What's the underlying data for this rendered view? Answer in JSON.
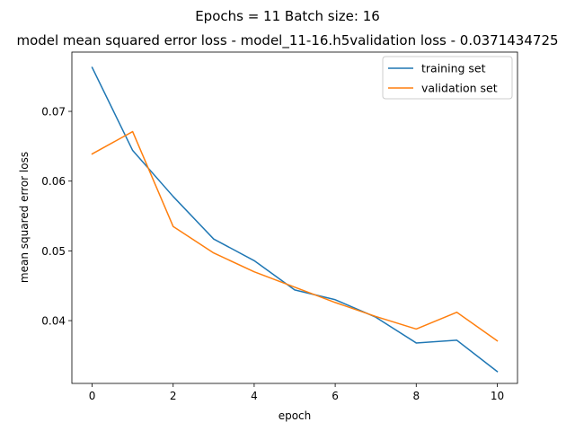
{
  "chart_data": {
    "type": "line",
    "suptitle": "Epochs = 11  Batch size: 16",
    "title": "model mean squared error loss - model_11-16.h5validation loss - 0.0371434725",
    "xlabel": "epoch",
    "ylabel": "mean squared error loss",
    "xlim": [
      -0.5,
      10.5
    ],
    "ylim": [
      0.031,
      0.0785
    ],
    "xticks": [
      0,
      2,
      4,
      6,
      8,
      10
    ],
    "yticks": [
      0.04,
      0.05,
      0.06,
      0.07
    ],
    "ytick_labels": [
      "0.04",
      "0.05",
      "0.06",
      "0.07"
    ],
    "grid": false,
    "legend_position": "upper right",
    "x": [
      0,
      1,
      2,
      3,
      4,
      5,
      6,
      7,
      8,
      9,
      10
    ],
    "series": [
      {
        "name": "training set",
        "color": "#1f77b4",
        "values": [
          0.0763,
          0.0644,
          0.0578,
          0.0517,
          0.0486,
          0.0444,
          0.043,
          0.0405,
          0.0368,
          0.0372,
          0.0327
        ]
      },
      {
        "name": "validation set",
        "color": "#ff7f0e",
        "values": [
          0.0639,
          0.0671,
          0.0535,
          0.0497,
          0.047,
          0.0448,
          0.0426,
          0.0406,
          0.0388,
          0.0412,
          0.0371
        ]
      }
    ]
  }
}
